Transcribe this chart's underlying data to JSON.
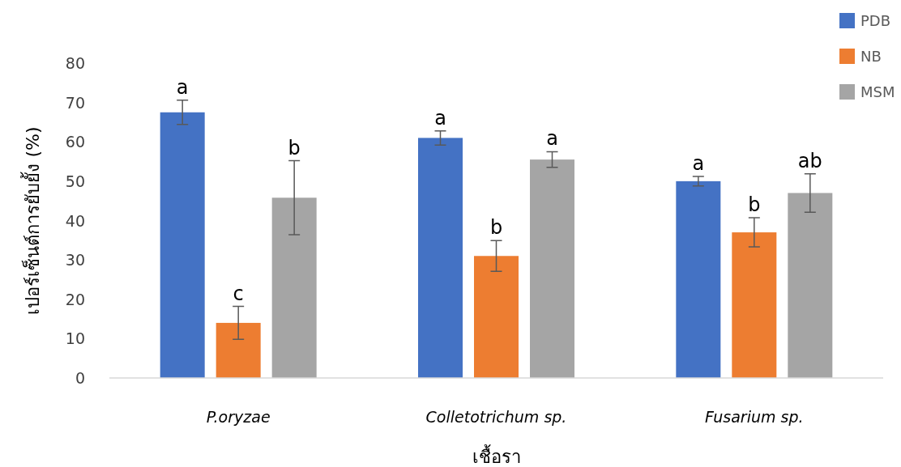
{
  "chart_data": {
    "type": "bar",
    "ylabel": "เปอร์เซ็นต์การยับยั้ง (%)",
    "xlabel": "เชื้อรา",
    "categories": [
      "P.oryzae",
      "Colletotrichum sp.",
      "Fusarium sp."
    ],
    "series": [
      {
        "name": "PDB",
        "color": "#4472c4",
        "values": [
          67.5,
          61,
          50
        ],
        "errors": [
          3.1,
          1.8,
          1.2
        ],
        "value_labels": [
          "a",
          "a",
          "a"
        ]
      },
      {
        "name": "NB",
        "color": "#ed7d31",
        "values": [
          14,
          31,
          37
        ],
        "errors": [
          4.2,
          3.9,
          3.7
        ],
        "value_labels": [
          "c",
          "b",
          "b"
        ]
      },
      {
        "name": "MSM",
        "color": "#a5a5a5",
        "values": [
          45.8,
          55.5,
          47
        ],
        "errors": [
          9.4,
          2,
          4.9
        ],
        "value_labels": [
          "b",
          "a",
          "ab"
        ]
      }
    ],
    "ylim": [
      0,
      80
    ],
    "yticks": [
      0,
      10,
      20,
      30,
      40,
      50,
      60,
      70,
      80
    ],
    "grid": false,
    "legend": "top right"
  }
}
